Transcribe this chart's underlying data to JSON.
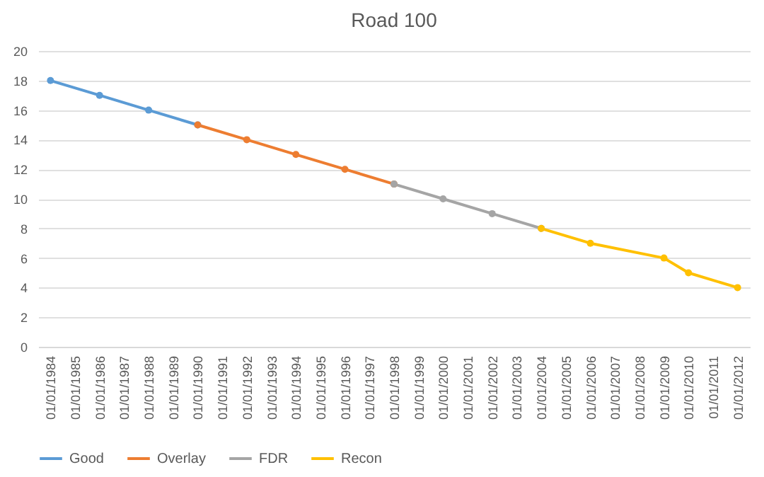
{
  "chart_data": {
    "type": "line",
    "title": "Road 100",
    "categories": [
      "01/01/1984",
      "01/01/1985",
      "01/01/1986",
      "01/01/1987",
      "01/01/1988",
      "01/01/1989",
      "01/01/1990",
      "01/01/1991",
      "01/01/1992",
      "01/01/1993",
      "01/01/1994",
      "01/01/1995",
      "01/01/1996",
      "01/01/1997",
      "01/01/1998",
      "01/01/1999",
      "01/01/2000",
      "01/01/2001",
      "01/01/2002",
      "01/01/2003",
      "01/01/2004",
      "01/01/2005",
      "01/01/2006",
      "01/01/2007",
      "01/01/2008",
      "01/01/2009",
      "01/01/2010",
      "01/01/2011",
      "01/01/2012"
    ],
    "series": [
      {
        "name": "Good",
        "color": "#5b9bd5",
        "values": [
          18,
          null,
          17,
          null,
          16,
          null,
          15,
          null,
          null,
          null,
          null,
          null,
          null,
          null,
          null,
          null,
          null,
          null,
          null,
          null,
          null,
          null,
          null,
          null,
          null,
          null,
          null,
          null,
          null
        ]
      },
      {
        "name": "Overlay",
        "color": "#ed7d31",
        "values": [
          null,
          null,
          null,
          null,
          null,
          null,
          15,
          null,
          14,
          null,
          13,
          null,
          12,
          null,
          11,
          null,
          null,
          null,
          null,
          null,
          null,
          null,
          null,
          null,
          null,
          null,
          null,
          null,
          null
        ]
      },
      {
        "name": "FDR",
        "color": "#a5a5a5",
        "values": [
          null,
          null,
          null,
          null,
          null,
          null,
          null,
          null,
          null,
          null,
          null,
          null,
          null,
          null,
          11,
          null,
          10,
          null,
          9,
          null,
          8,
          null,
          null,
          null,
          null,
          null,
          null,
          null,
          null
        ]
      },
      {
        "name": "Recon",
        "color": "#ffc000",
        "values": [
          null,
          null,
          null,
          null,
          null,
          null,
          null,
          null,
          null,
          null,
          null,
          null,
          null,
          null,
          null,
          null,
          null,
          null,
          null,
          null,
          8,
          null,
          7,
          null,
          null,
          6,
          5,
          null,
          4
        ]
      }
    ],
    "ylim": [
      0,
      20
    ],
    "yticks": [
      0,
      2,
      4,
      6,
      8,
      10,
      12,
      14,
      16,
      18,
      20
    ],
    "grid": "y",
    "legend": "bottom",
    "marker": "circle",
    "line_style": "solid"
  }
}
